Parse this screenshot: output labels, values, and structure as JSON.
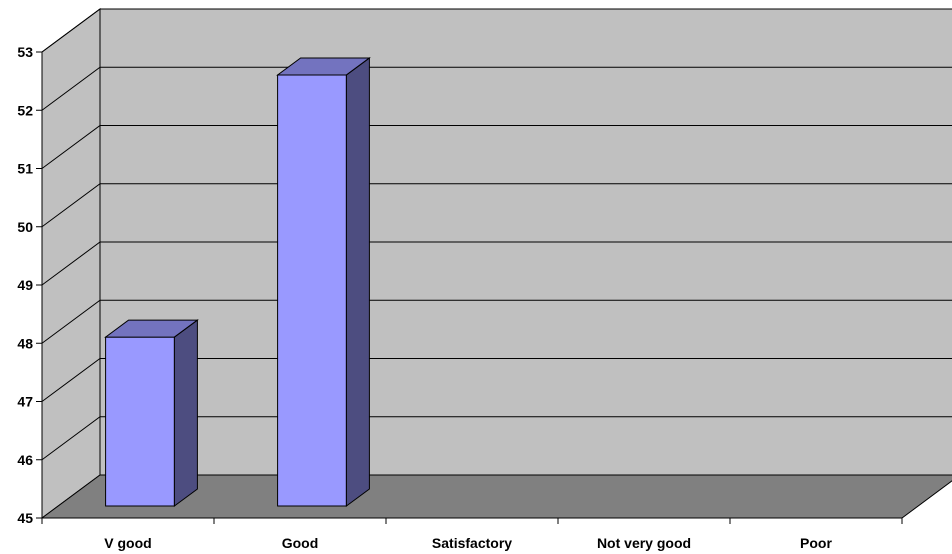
{
  "chart_data": {
    "type": "bar",
    "title": "",
    "xlabel": "",
    "ylabel": "",
    "categories": [
      "V good",
      "Good",
      "Satisfactory",
      "Not very good",
      "Poor"
    ],
    "values": [
      47.9,
      52.4,
      null,
      null,
      null
    ],
    "ylim": [
      45,
      53
    ],
    "yticks": [
      "45",
      "46",
      "47",
      "48",
      "49",
      "50",
      "51",
      "52",
      "53"
    ],
    "grid": true,
    "legend": "none",
    "three_d": true,
    "colors": {
      "bar_front": "#9999FF",
      "bar_side": "#4D4D80",
      "bar_top": "#7373BF",
      "back_wall": "#C0C0C0",
      "side_wall": "#C0C0C0",
      "floor": "#808080",
      "gridline": "#000000"
    }
  }
}
